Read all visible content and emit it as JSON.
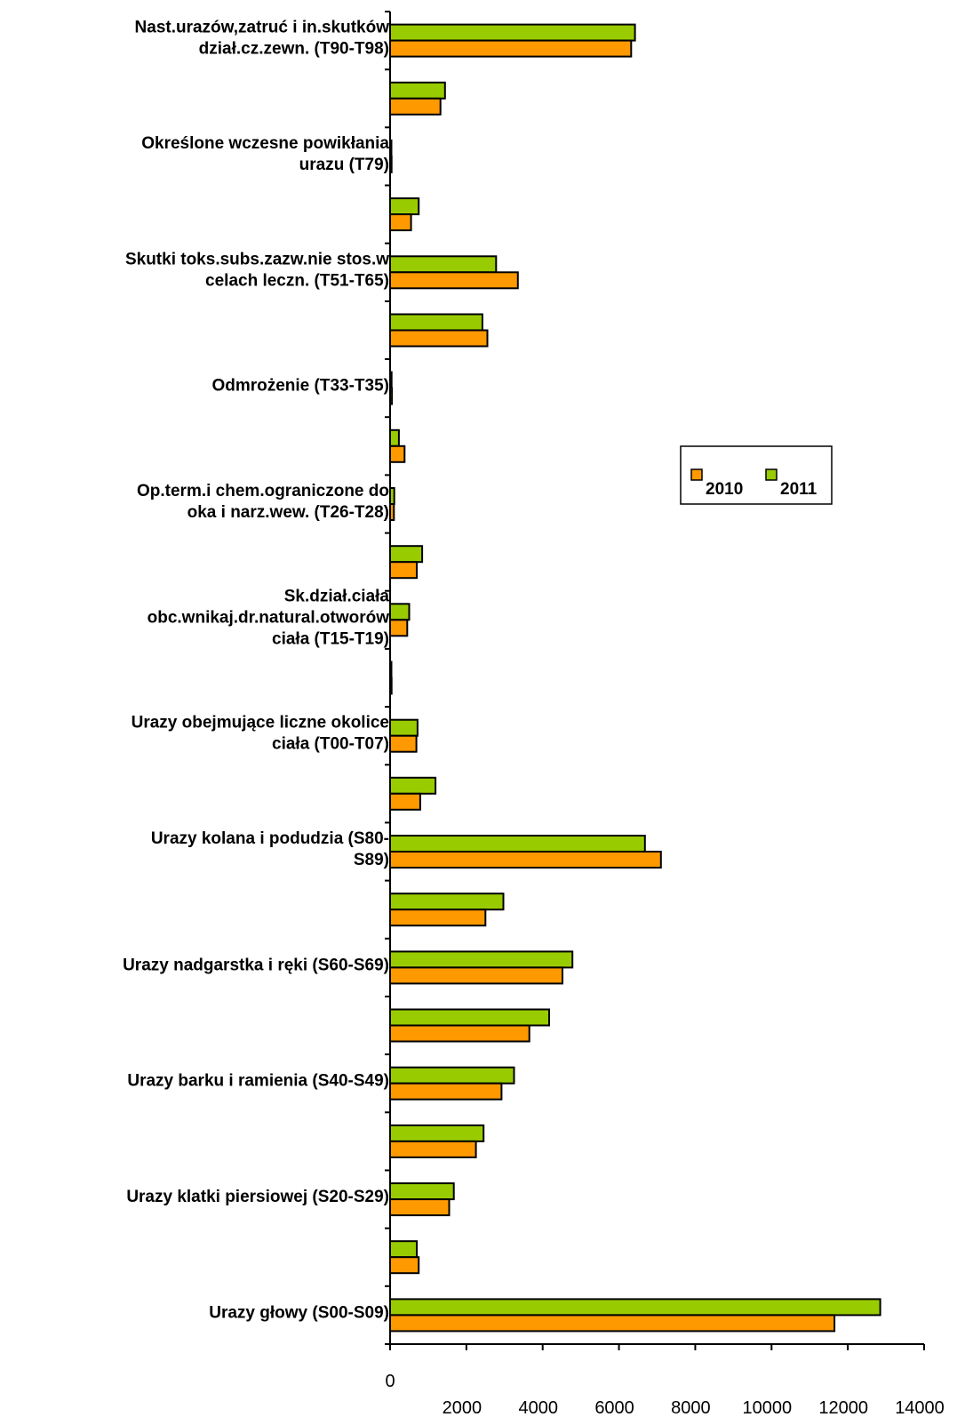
{
  "chart_data": {
    "type": "bar",
    "orientation": "horizontal",
    "categories": [
      "Urazy głowy (S00-S09)",
      "",
      "Urazy klatki piersiowej (S20-S29)",
      "",
      "Urazy barku i ramienia (S40-S49)",
      "",
      "Urazy nadgarstka i ręki (S60-S69)",
      "",
      "Urazy kolana i podudzia (S80-S89)",
      "",
      "Urazy obejmujące liczne okolice ciała (T00-T07)",
      "",
      "Sk.dział.ciała obc.wnikaj.dr.natural.otworów ciała (T15-T19)",
      "",
      "Op.term.i chem.ograniczone do oka i narz.wew. (T26-T28)",
      "",
      "Odmrożenie (T33-T35)",
      "",
      "Skutki toks.subs.zazw.nie stos.w celach leczn. (T51-T65)",
      "",
      "Określone wczesne powikłania urazu (T79)",
      "",
      "Nast.urazów,zatruć i in.skutków dział.cz.zewn. (T90-T98)"
    ],
    "category_lines": [
      [
        "Urazy głowy (S00-S09)"
      ],
      [],
      [
        "Urazy klatki piersiowej (S20-S29)"
      ],
      [],
      [
        "Urazy barku i ramienia (S40-S49)"
      ],
      [],
      [
        "Urazy nadgarstka i ręki (S60-S69)"
      ],
      [],
      [
        "Urazy kolana i podudzia (S80-",
        "S89)"
      ],
      [],
      [
        "Urazy obejmujące liczne okolice",
        "ciała (T00-T07)"
      ],
      [],
      [
        "Sk.dział.ciała",
        "obc.wnikaj.dr.natural.otworów",
        "ciała (T15-T19)"
      ],
      [],
      [
        "Op.term.i chem.ograniczone do",
        "oka i narz.wew. (T26-T28)"
      ],
      [],
      [
        "Odmrożenie (T33-T35)"
      ],
      [],
      [
        "Skutki toks.subs.zazw.nie stos.w",
        "celach leczn. (T51-T65)"
      ],
      [],
      [
        "Określone wczesne powikłania",
        "urazu (T79)"
      ],
      [],
      [
        "Nast.urazów,zatruć i in.skutków",
        "dział.cz.zewn. (T90-T98)"
      ]
    ],
    "series": [
      {
        "name": "2010",
        "color": "#FF9900",
        "values": [
          11650,
          750,
          1550,
          2250,
          2920,
          3650,
          4520,
          2500,
          7100,
          790,
          690,
          40,
          450,
          700,
          100,
          380,
          50,
          2550,
          3350,
          550,
          40,
          1320,
          6320
        ]
      },
      {
        "name": "2011",
        "color": "#99CC00",
        "values": [
          12850,
          700,
          1670,
          2450,
          3250,
          4170,
          4780,
          2970,
          6680,
          1190,
          720,
          30,
          500,
          840,
          110,
          230,
          40,
          2420,
          2780,
          750,
          30,
          1440,
          6420
        ]
      }
    ],
    "xlim": [
      0,
      14000
    ],
    "xticks": [
      "0",
      "2000",
      "4000",
      "6000",
      "8000",
      "10000",
      "12000",
      "14000"
    ],
    "title": "",
    "xlabel": "",
    "ylabel": "",
    "legend": {
      "position": "right",
      "entries": [
        "2010",
        "2011"
      ]
    },
    "grid": false
  }
}
